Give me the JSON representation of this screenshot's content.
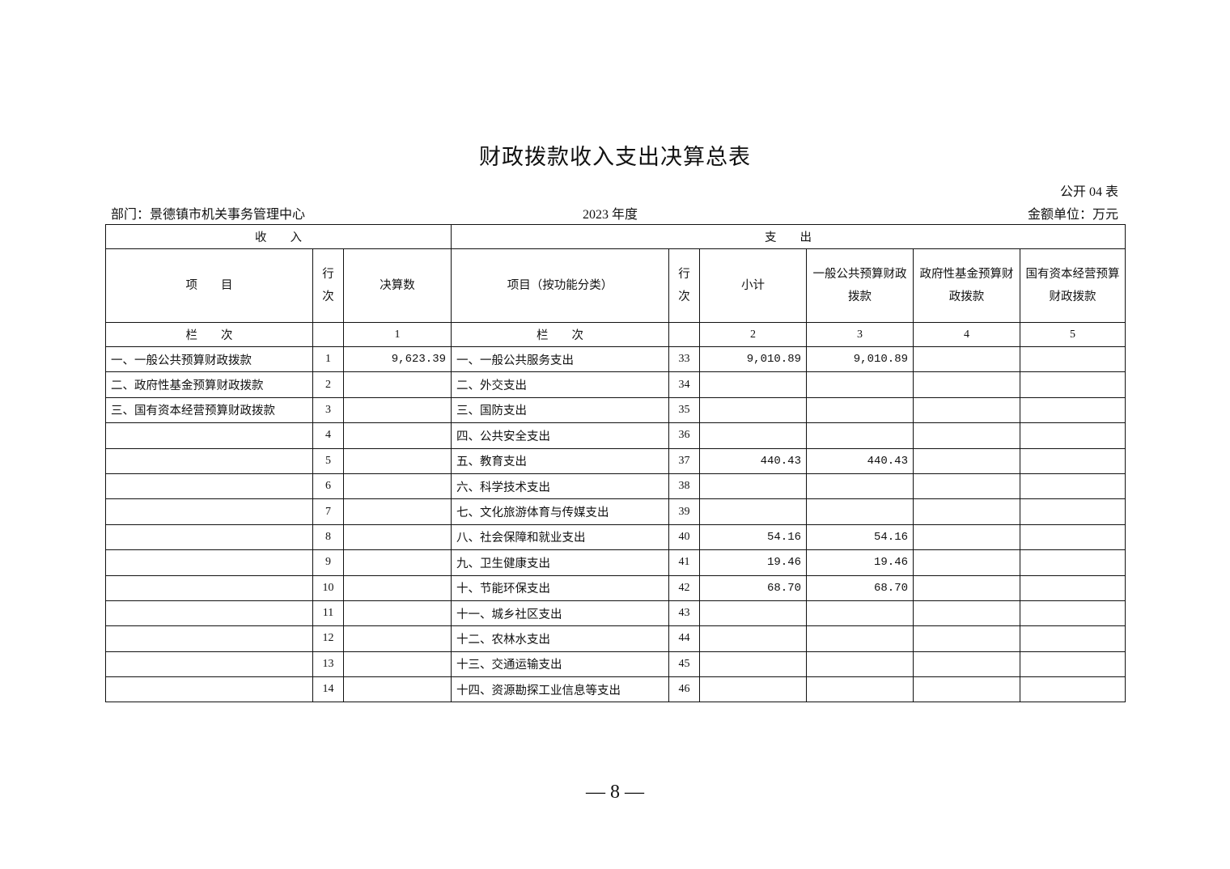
{
  "title": "财政拨款收入支出决算总表",
  "form_no": "公开 04 表",
  "department": "部门：景德镇市机关事务管理中心",
  "year": "2023 年度",
  "unit": "金额单位：万元",
  "headers": {
    "income": "收　　入",
    "expense": "支　　出",
    "item": "项　　目",
    "row_no": "行次",
    "amount": "决算数",
    "func_item": "项目（按功能分类）",
    "subtotal": "小计",
    "general": "一般公共预算财政拨款",
    "gov_fund": "政府性基金预算财政拨款",
    "state_capital": "国有资本经营预算财政拨款",
    "col_label": "栏　　次",
    "col1": "1",
    "col2": "2",
    "col3": "3",
    "col4": "4",
    "col5": "5"
  },
  "rows": [
    {
      "in_item": "一、一般公共预算财政拨款",
      "in_no": "1",
      "in_amt": "9,623.39",
      "ex_item": "一、一般公共服务支出",
      "ex_no": "33",
      "sub": "9,010.89",
      "gen": "9,010.89",
      "fund": "",
      "cap": ""
    },
    {
      "in_item": "二、政府性基金预算财政拨款",
      "in_no": "2",
      "in_amt": "",
      "ex_item": "二、外交支出",
      "ex_no": "34",
      "sub": "",
      "gen": "",
      "fund": "",
      "cap": ""
    },
    {
      "in_item": "三、国有资本经营预算财政拨款",
      "in_no": "3",
      "in_amt": "",
      "ex_item": "三、国防支出",
      "ex_no": "35",
      "sub": "",
      "gen": "",
      "fund": "",
      "cap": ""
    },
    {
      "in_item": "",
      "in_no": "4",
      "in_amt": "",
      "ex_item": "四、公共安全支出",
      "ex_no": "36",
      "sub": "",
      "gen": "",
      "fund": "",
      "cap": ""
    },
    {
      "in_item": "",
      "in_no": "5",
      "in_amt": "",
      "ex_item": "五、教育支出",
      "ex_no": "37",
      "sub": "440.43",
      "gen": "440.43",
      "fund": "",
      "cap": ""
    },
    {
      "in_item": "",
      "in_no": "6",
      "in_amt": "",
      "ex_item": "六、科学技术支出",
      "ex_no": "38",
      "sub": "",
      "gen": "",
      "fund": "",
      "cap": ""
    },
    {
      "in_item": "",
      "in_no": "7",
      "in_amt": "",
      "ex_item": "七、文化旅游体育与传媒支出",
      "ex_no": "39",
      "sub": "",
      "gen": "",
      "fund": "",
      "cap": ""
    },
    {
      "in_item": "",
      "in_no": "8",
      "in_amt": "",
      "ex_item": "八、社会保障和就业支出",
      "ex_no": "40",
      "sub": "54.16",
      "gen": "54.16",
      "fund": "",
      "cap": ""
    },
    {
      "in_item": "",
      "in_no": "9",
      "in_amt": "",
      "ex_item": "九、卫生健康支出",
      "ex_no": "41",
      "sub": "19.46",
      "gen": "19.46",
      "fund": "",
      "cap": ""
    },
    {
      "in_item": "",
      "in_no": "10",
      "in_amt": "",
      "ex_item": "十、节能环保支出",
      "ex_no": "42",
      "sub": "68.70",
      "gen": "68.70",
      "fund": "",
      "cap": ""
    },
    {
      "in_item": "",
      "in_no": "11",
      "in_amt": "",
      "ex_item": "十一、城乡社区支出",
      "ex_no": "43",
      "sub": "",
      "gen": "",
      "fund": "",
      "cap": ""
    },
    {
      "in_item": "",
      "in_no": "12",
      "in_amt": "",
      "ex_item": "十二、农林水支出",
      "ex_no": "44",
      "sub": "",
      "gen": "",
      "fund": "",
      "cap": ""
    },
    {
      "in_item": "",
      "in_no": "13",
      "in_amt": "",
      "ex_item": "十三、交通运输支出",
      "ex_no": "45",
      "sub": "",
      "gen": "",
      "fund": "",
      "cap": ""
    },
    {
      "in_item": "",
      "in_no": "14",
      "in_amt": "",
      "ex_item": "十四、资源勘探工业信息等支出",
      "ex_no": "46",
      "sub": "",
      "gen": "",
      "fund": "",
      "cap": ""
    }
  ],
  "page_number": "— 8 —"
}
